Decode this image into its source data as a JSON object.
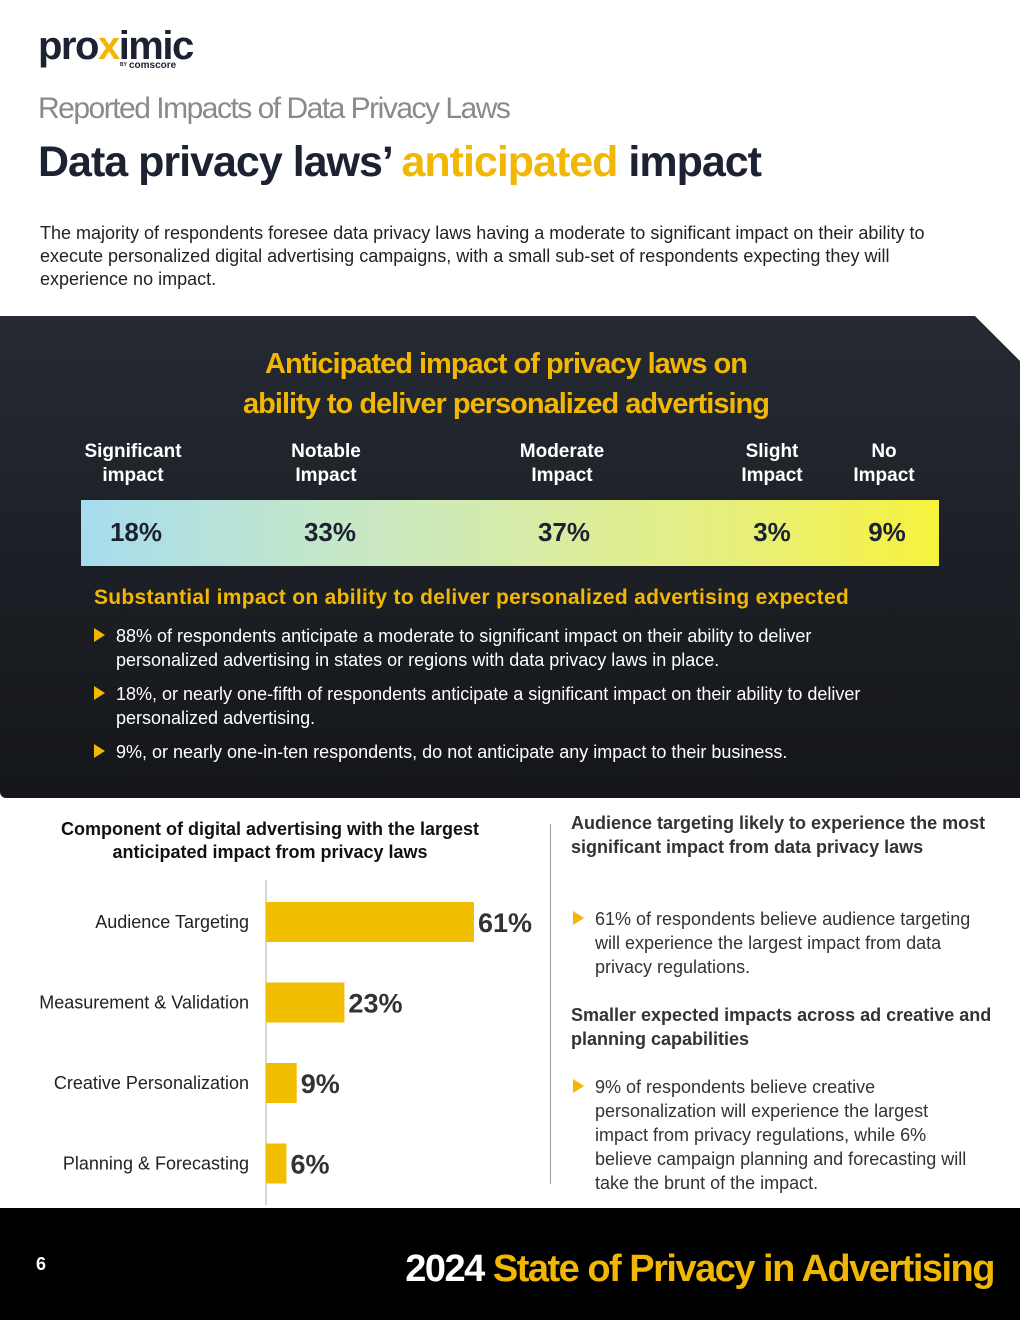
{
  "logo": {
    "word_pre": "pro",
    "word_x": "x",
    "word_post": "imic",
    "by": "BY",
    "sub": "comscore"
  },
  "kicker": "Reported Impacts of Data Privacy Laws",
  "headline": {
    "pre": "Data privacy laws’ ",
    "highlight": "anticipated",
    "post": " impact"
  },
  "intro": "The majority of respondents foresee data privacy laws having a moderate to significant impact on their ability to execute personalized digital advertising campaigns, with a small sub-set of respondents expecting they will experience no impact.",
  "panel": {
    "title_line1": "Anticipated impact of privacy laws on",
    "title_line2": "ability to deliver personalized advertising",
    "scale": [
      {
        "line1": "Significant",
        "line2": "impact",
        "value": "18%"
      },
      {
        "line1": "Notable",
        "line2": "Impact",
        "value": "33%"
      },
      {
        "line1": "Moderate",
        "line2": "Impact",
        "value": "37%"
      },
      {
        "line1": "Slight",
        "line2": "Impact",
        "value": "3%"
      },
      {
        "line1": "No",
        "line2": "Impact",
        "value": "9%"
      }
    ],
    "subhead": "Substantial impact on ability to deliver personalized advertising expected",
    "bullets": [
      "88% of respondents anticipate a moderate to significant impact on their ability to deliver personalized advertising in states or regions with data privacy laws in place.",
      "18%, or nearly one-fifth of respondents anticipate a significant impact on their ability to deliver personalized advertising.",
      "9%, or nearly one-in-ten respondents, do not anticipate any impact to their business."
    ],
    "colors": {
      "accent": "#f2b705",
      "bar_start": "#a6dcee",
      "bar_end": "#f6f23c"
    }
  },
  "chart_data": {
    "type": "bar",
    "orientation": "horizontal",
    "title": "Component of digital advertising with the largest anticipated impact from privacy laws",
    "categories": [
      "Audience Targeting",
      "Measurement & Validation",
      "Creative Personalization",
      "Planning & Forecasting"
    ],
    "values": [
      61,
      23,
      9,
      6
    ],
    "value_labels": [
      "61%",
      "23%",
      "9%",
      "6%"
    ],
    "unit": "%",
    "xlim": [
      0,
      61
    ],
    "bar_color": "#f2be00",
    "grid": false,
    "legend": "none"
  },
  "right": {
    "head1": "Audience targeting likely to experience the most significant impact from data privacy laws",
    "bullet1": "61% of respondents believe audience targeting will experience the largest impact from data privacy regulations.",
    "head2": "Smaller expected impacts across ad creative and planning capabilities",
    "bullet2": "9% of respondents believe creative personalization will experience the largest impact from privacy regulations, while 6% believe campaign planning and forecasting will take the brunt of the impact."
  },
  "footer": {
    "page": "6",
    "year": "2024",
    "title": "State of Privacy in Advertising"
  }
}
